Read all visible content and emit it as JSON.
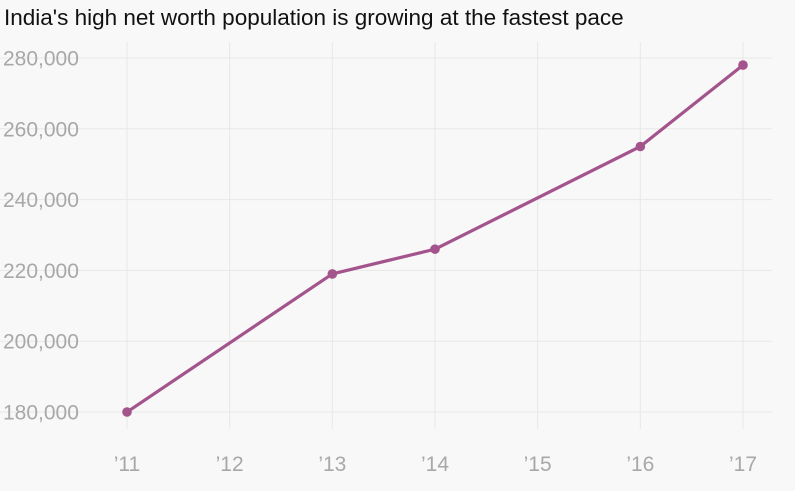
{
  "chart_data": {
    "type": "line",
    "title": "India's high net worth population is growing at the fastest pace",
    "xlabel": "",
    "ylabel": "",
    "x_ticks": [
      "’11",
      "’12",
      "’13",
      "’14",
      "’15",
      "’16",
      "’17"
    ],
    "y_ticks": [
      "180,000",
      "200,000",
      "220,000",
      "240,000",
      "260,000",
      "280,000"
    ],
    "xlim": [
      2011,
      2017
    ],
    "ylim": [
      180000,
      280000
    ],
    "grid": true,
    "legend": "none",
    "colors": {
      "line": "#a4548c",
      "grid": "#e8e8e8",
      "tick_label": "#a8a8a8",
      "background": "#f8f8f8"
    },
    "series": [
      {
        "x": [
          2011,
          2013,
          2014,
          2016,
          2017
        ],
        "y": [
          180000,
          219000,
          226000,
          255000,
          278000
        ]
      }
    ]
  }
}
